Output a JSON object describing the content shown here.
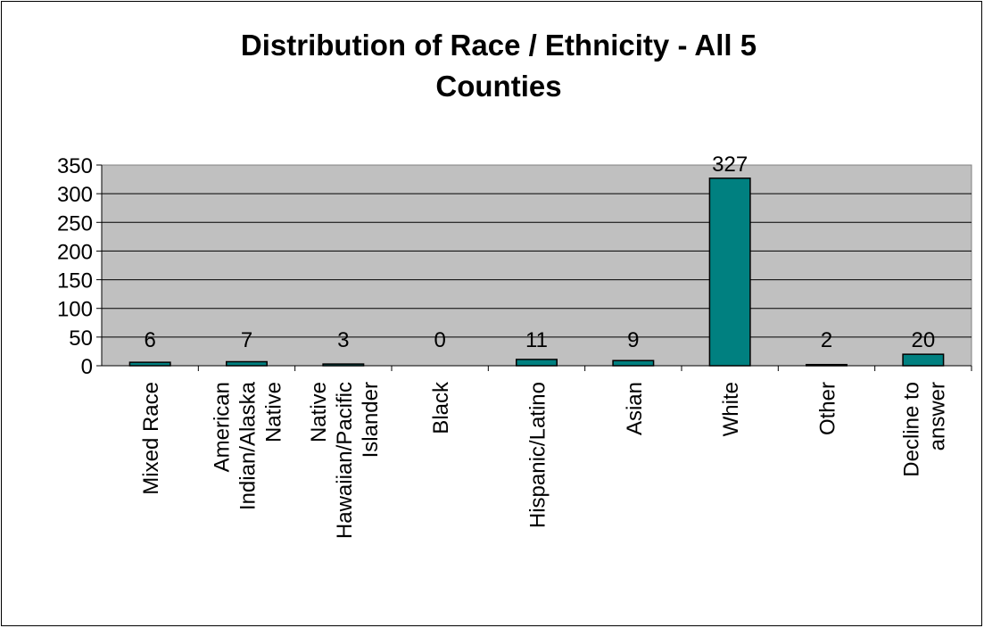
{
  "chart_data": {
    "type": "bar",
    "title_lines": [
      "Distribution of Race / Ethnicity - All 5",
      "Counties"
    ],
    "categories": [
      "Mixed Race",
      "American Indian/Alaska Native",
      "Native Hawaiian/Pacific Islander",
      "Black",
      "Hispanic/Latino",
      "Asian",
      "White",
      "Other",
      "Decline to answer"
    ],
    "category_label_lines": [
      [
        "Mixed Race"
      ],
      [
        "American",
        "Indian/Alaska",
        "Native"
      ],
      [
        "Native",
        "Hawaiian/Pacific",
        "Islander"
      ],
      [
        "Black"
      ],
      [
        "Hispanic/Latino"
      ],
      [
        "Asian"
      ],
      [
        "White"
      ],
      [
        "Other"
      ],
      [
        "Decline to",
        "answer"
      ]
    ],
    "values": [
      6,
      7,
      3,
      0,
      11,
      9,
      327,
      2,
      20
    ],
    "data_labels": [
      "6",
      "7",
      "3",
      "0",
      "11",
      "9",
      "327",
      "2",
      "20"
    ],
    "ylim": [
      0,
      350
    ],
    "yticks": [
      0,
      50,
      100,
      150,
      200,
      250,
      300,
      350
    ],
    "ytick_labels": [
      "0",
      "50",
      "100",
      "150",
      "200",
      "250",
      "300",
      "350"
    ],
    "xlabel": "",
    "ylabel": "",
    "grid": true,
    "legend": "none",
    "colors": {
      "plot_background": "#c0c0c0",
      "bar_fill": "#008080",
      "bar_stroke": "#000000",
      "gridline": "#000000"
    }
  }
}
